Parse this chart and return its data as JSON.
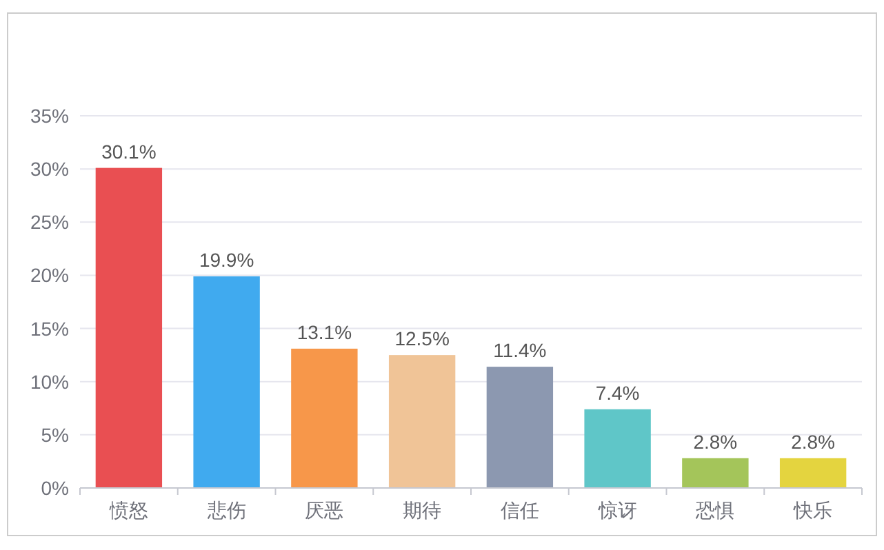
{
  "chart_data": {
    "type": "bar",
    "categories": [
      "愤怒",
      "悲伤",
      "厌恶",
      "期待",
      "信任",
      "惊讶",
      "恐惧",
      "快乐"
    ],
    "values": [
      30.1,
      19.9,
      13.1,
      12.5,
      11.4,
      7.4,
      2.8,
      2.8
    ],
    "colors": [
      "#e94f52",
      "#40aaef",
      "#f7974a",
      "#f0c497",
      "#8c98b0",
      "#5fc6c8",
      "#a4c55a",
      "#e4d43f"
    ],
    "ylim": [
      0,
      35
    ],
    "yticks": [
      {
        "value": 0,
        "label": "0%"
      },
      {
        "value": 5,
        "label": "5%"
      },
      {
        "value": 10,
        "label": "10%"
      },
      {
        "value": 15,
        "label": "15%"
      },
      {
        "value": 20,
        "label": "20%"
      },
      {
        "value": 25,
        "label": "25%"
      },
      {
        "value": 30,
        "label": "30%"
      },
      {
        "value": 35,
        "label": "35%"
      }
    ],
    "value_labels": [
      "30.1%",
      "19.9%",
      "13.1%",
      "12.5%",
      "11.4%",
      "7.4%",
      "2.8%",
      "2.8%"
    ],
    "grid": "y"
  }
}
